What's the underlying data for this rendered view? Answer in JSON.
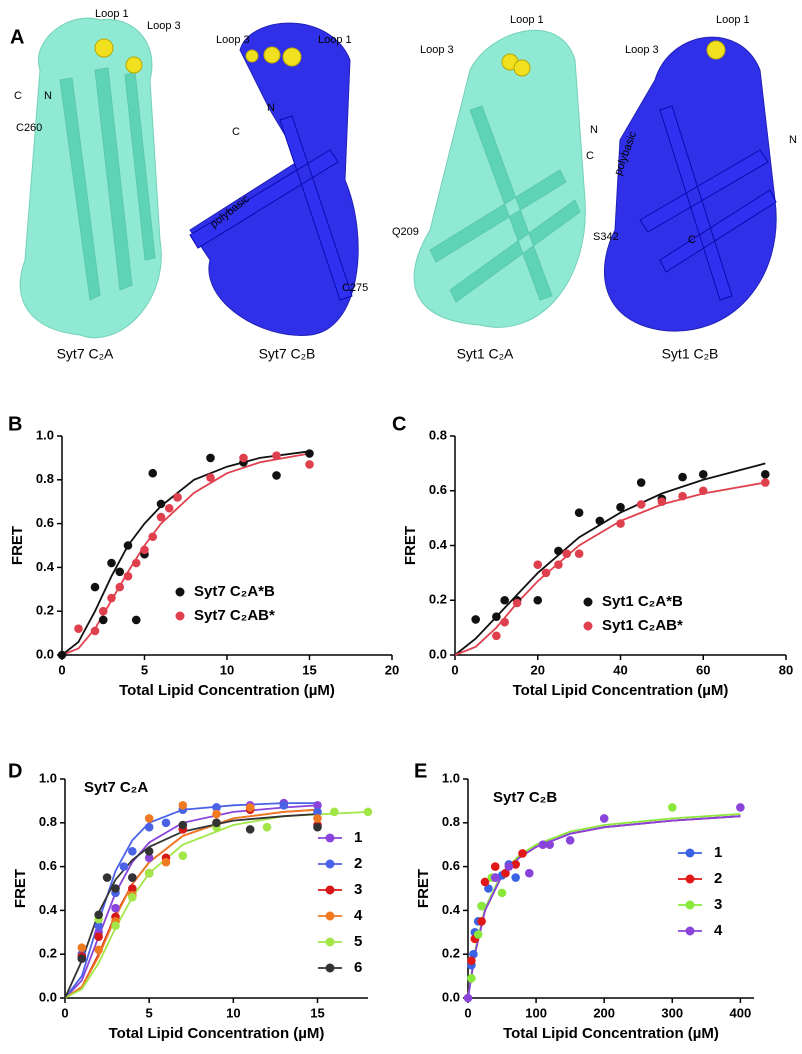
{
  "panel_a": {
    "label": "A",
    "structures": [
      {
        "caption": "Syt7 C₂A",
        "labels": [
          "Loop 1",
          "Loop 3",
          "C",
          "N",
          "C260"
        ]
      },
      {
        "caption": "Syt7 C₂B",
        "labels": [
          "Loop 3",
          "Loop 1",
          "N",
          "C",
          "polybasic",
          "C275"
        ]
      },
      {
        "caption": "Syt1 C₂A",
        "labels": [
          "Loop 1",
          "Loop 3",
          "N",
          "C",
          "Q209"
        ]
      },
      {
        "caption": "Syt1 C₂B",
        "labels": [
          "Loop 1",
          "Loop 3",
          "polybasic",
          "N",
          "S342",
          "C"
        ]
      }
    ]
  },
  "chart_data": [
    {
      "type": "scatter",
      "panel": "B",
      "xlabel": "Total Lipid Concentration (µM)",
      "ylabel": "FRET",
      "xlim": [
        0,
        20
      ],
      "xticks": [
        0,
        5,
        10,
        15,
        20
      ],
      "ylim": [
        0,
        1.0
      ],
      "yticks": [
        {
          "value": 0,
          "label": "0.0"
        },
        0.2,
        0.4,
        0.6,
        0.8,
        {
          "value": 1.0,
          "label": "1.0"
        }
      ],
      "legend": "lower right",
      "series": [
        {
          "name": "Syt7 C₂A*B",
          "color": "#111111",
          "x": [
            0,
            2,
            2.5,
            3,
            3.5,
            4,
            4.5,
            5,
            5.5,
            6,
            7,
            9,
            11,
            13,
            15
          ],
          "values": [
            0,
            0.31,
            0.16,
            0.42,
            0.38,
            0.5,
            0.16,
            0.46,
            0.83,
            0.69,
            0.72,
            0.9,
            0.88,
            0.82,
            0.92
          ],
          "fit": {
            "x": [
              0,
              1,
              2,
              3,
              4,
              5,
              6,
              8,
              10,
              12,
              15
            ],
            "values": [
              0,
              0.06,
              0.2,
              0.36,
              0.5,
              0.6,
              0.68,
              0.8,
              0.86,
              0.9,
              0.93
            ]
          }
        },
        {
          "name": "Syt7 C₂AB*",
          "color": "#e0404e",
          "x": [
            1,
            2,
            2.5,
            3,
            3.5,
            4,
            4.5,
            5,
            5.5,
            6,
            6.5,
            7,
            9,
            11,
            13,
            15
          ],
          "values": [
            0.12,
            0.11,
            0.2,
            0.26,
            0.31,
            0.36,
            0.42,
            0.48,
            0.54,
            0.63,
            0.67,
            0.72,
            0.81,
            0.9,
            0.91,
            0.87
          ],
          "fit": {
            "x": [
              0,
              1,
              2,
              3,
              4,
              5,
              6,
              8,
              10,
              12,
              15
            ],
            "values": [
              0,
              0.03,
              0.12,
              0.25,
              0.38,
              0.5,
              0.6,
              0.74,
              0.83,
              0.88,
              0.92
            ]
          }
        }
      ]
    },
    {
      "type": "scatter",
      "panel": "C",
      "xlabel": "Total Lipid Concentration (µM)",
      "ylabel": "FRET",
      "xlim": [
        0,
        80
      ],
      "xticks": [
        0,
        20,
        40,
        60,
        80
      ],
      "ylim": [
        0,
        0.8
      ],
      "yticks": [
        {
          "value": 0,
          "label": "0.0"
        },
        0.2,
        0.4,
        0.6,
        0.8
      ],
      "legend": "lower right",
      "series": [
        {
          "name": "Syt1 C₂A*B",
          "color": "#111111",
          "x": [
            5,
            10,
            12,
            15,
            20,
            25,
            30,
            35,
            40,
            45,
            50,
            55,
            60,
            75
          ],
          "values": [
            0.13,
            0.14,
            0.2,
            0.2,
            0.2,
            0.38,
            0.52,
            0.49,
            0.54,
            0.63,
            0.57,
            0.65,
            0.66,
            0.66
          ],
          "fit": {
            "x": [
              0,
              5,
              10,
              15,
              20,
              30,
              40,
              50,
              60,
              75
            ],
            "values": [
              0,
              0.06,
              0.14,
              0.22,
              0.3,
              0.43,
              0.52,
              0.59,
              0.64,
              0.7
            ]
          }
        },
        {
          "name": "Syt1 C₂AB*",
          "color": "#e0404e",
          "x": [
            10,
            12,
            15,
            20,
            22,
            25,
            27,
            30,
            40,
            45,
            50,
            55,
            60,
            75
          ],
          "values": [
            0.07,
            0.12,
            0.19,
            0.33,
            0.3,
            0.33,
            0.37,
            0.37,
            0.48,
            0.55,
            0.56,
            0.58,
            0.6,
            0.63
          ],
          "fit": {
            "x": [
              0,
              5,
              10,
              15,
              20,
              30,
              40,
              50,
              60,
              75
            ],
            "values": [
              0,
              0.03,
              0.1,
              0.19,
              0.27,
              0.4,
              0.49,
              0.55,
              0.59,
              0.63
            ]
          }
        }
      ]
    },
    {
      "type": "scatter",
      "panel": "D",
      "title": "Syt7 C₂A",
      "xlabel": "Total Lipid Concentration (µM)",
      "ylabel": "FRET",
      "xlim": [
        0,
        18
      ],
      "xticks": [
        0,
        5,
        10,
        15
      ],
      "ylim": [
        0,
        1.0
      ],
      "yticks": [
        {
          "value": 0,
          "label": "0.0"
        },
        0.2,
        0.4,
        0.6,
        0.8,
        {
          "value": 1.0,
          "label": "1.0"
        }
      ],
      "legend": "right",
      "series": [
        {
          "name": "1",
          "color": "#8a44dc",
          "x": [
            1,
            2,
            3,
            4,
            5,
            7,
            9,
            11,
            13,
            15
          ],
          "values": [
            0.18,
            0.3,
            0.41,
            0.55,
            0.64,
            0.77,
            0.87,
            0.88,
            0.89,
            0.88
          ],
          "fit": {
            "x": [
              0,
              1,
              2,
              3,
              4,
              5,
              7,
              10,
              13,
              15
            ],
            "values": [
              0,
              0.08,
              0.28,
              0.48,
              0.62,
              0.71,
              0.8,
              0.85,
              0.87,
              0.88
            ]
          }
        },
        {
          "name": "2",
          "color": "#4a62e6",
          "x": [
            1,
            2,
            3,
            3.5,
            4,
            5,
            6,
            7,
            9,
            11,
            13,
            15
          ],
          "values": [
            0.2,
            0.33,
            0.48,
            0.6,
            0.67,
            0.78,
            0.8,
            0.86,
            0.87,
            0.87,
            0.88,
            0.85
          ],
          "fit": {
            "x": [
              0,
              1,
              2,
              3,
              4,
              5,
              7,
              10,
              13,
              15
            ],
            "values": [
              0,
              0.1,
              0.35,
              0.58,
              0.72,
              0.8,
              0.86,
              0.88,
              0.89,
              0.89
            ]
          }
        },
        {
          "name": "3",
          "color": "#d81818",
          "x": [
            1,
            2,
            3,
            4,
            5,
            6,
            7,
            9,
            11,
            15
          ],
          "values": [
            0.19,
            0.28,
            0.37,
            0.5,
            0.57,
            0.64,
            0.77,
            0.8,
            0.86,
            0.79
          ],
          "fit": {
            "x": [
              0,
              1,
              2,
              3,
              4,
              5,
              7,
              10,
              13,
              15
            ],
            "values": [
              0,
              0.05,
              0.2,
              0.38,
              0.52,
              0.62,
              0.74,
              0.82,
              0.85,
              0.86
            ]
          }
        },
        {
          "name": "4",
          "color": "#f07a22",
          "x": [
            1,
            2,
            3,
            4,
            5,
            6,
            7,
            9,
            11,
            15
          ],
          "values": [
            0.23,
            0.22,
            0.35,
            0.47,
            0.82,
            0.62,
            0.88,
            0.84,
            0.87,
            0.82
          ],
          "fit": {
            "x": [
              0,
              1,
              2,
              3,
              4,
              5,
              7,
              10,
              13,
              15
            ],
            "values": [
              0,
              0.05,
              0.19,
              0.37,
              0.52,
              0.62,
              0.74,
              0.82,
              0.85,
              0.86
            ]
          }
        },
        {
          "name": "5",
          "color": "#a2e648",
          "x": [
            2,
            3,
            4,
            5,
            7,
            9,
            12,
            16,
            18
          ],
          "values": [
            0.36,
            0.33,
            0.46,
            0.57,
            0.65,
            0.78,
            0.78,
            0.85,
            0.85
          ],
          "fit": {
            "x": [
              0,
              1,
              2,
              3,
              4,
              5,
              7,
              10,
              13,
              18
            ],
            "values": [
              0,
              0.04,
              0.16,
              0.32,
              0.46,
              0.57,
              0.7,
              0.79,
              0.83,
              0.85
            ]
          }
        },
        {
          "name": "6",
          "color": "#333333",
          "x": [
            1,
            2,
            2.5,
            3,
            4,
            5,
            7,
            9,
            11,
            15
          ],
          "values": [
            0.18,
            0.38,
            0.55,
            0.5,
            0.55,
            0.67,
            0.79,
            0.8,
            0.77,
            0.78
          ],
          "fit": {
            "x": [
              0,
              1,
              2,
              3,
              4,
              5,
              7,
              10,
              13,
              15
            ],
            "values": [
              0,
              0.17,
              0.39,
              0.54,
              0.63,
              0.69,
              0.76,
              0.81,
              0.83,
              0.84
            ]
          }
        }
      ]
    },
    {
      "type": "scatter",
      "panel": "E",
      "title": "Syt7 C₂B",
      "xlabel": "Total Lipid Concentration (µM)",
      "ylabel": "FRET",
      "xlim": [
        0,
        420
      ],
      "xticks": [
        0,
        100,
        200,
        300,
        400
      ],
      "ylim": [
        0,
        1.0
      ],
      "yticks": [
        {
          "value": 0,
          "label": "0.0"
        },
        0.2,
        0.4,
        0.6,
        0.8,
        {
          "value": 1.0,
          "label": "1.0"
        }
      ],
      "legend": "right",
      "series": [
        {
          "name": "1",
          "color": "#3a62e6",
          "x": [
            5,
            8,
            10,
            15,
            20,
            30,
            40,
            50,
            60,
            70
          ],
          "values": [
            0.15,
            0.2,
            0.3,
            0.35,
            0.42,
            0.5,
            0.55,
            0.56,
            0.61,
            0.55
          ],
          "fit": {
            "x": [
              0,
              10,
              25,
              50,
              75,
              100,
              150,
              200,
              300,
              400
            ],
            "values": [
              0,
              0.2,
              0.4,
              0.56,
              0.64,
              0.69,
              0.75,
              0.78,
              0.81,
              0.83
            ]
          }
        },
        {
          "name": "2",
          "color": "#e01818",
          "x": [
            5,
            10,
            20,
            25,
            40,
            55,
            70,
            80
          ],
          "values": [
            0.17,
            0.27,
            0.35,
            0.53,
            0.6,
            0.57,
            0.61,
            0.66
          ],
          "fit": {
            "x": [
              0,
              10,
              25,
              50,
              75,
              100,
              150,
              200,
              300,
              400
            ],
            "values": [
              0,
              0.2,
              0.4,
              0.56,
              0.64,
              0.69,
              0.75,
              0.78,
              0.81,
              0.83
            ]
          }
        },
        {
          "name": "3",
          "color": "#8ae83a",
          "x": [
            5,
            15,
            20,
            35,
            50,
            200,
            300
          ],
          "values": [
            0.09,
            0.29,
            0.42,
            0.55,
            0.48,
            0.82,
            0.87
          ],
          "fit": {
            "x": [
              0,
              10,
              25,
              50,
              75,
              100,
              150,
              200,
              300,
              400
            ],
            "values": [
              0,
              0.21,
              0.41,
              0.57,
              0.65,
              0.7,
              0.76,
              0.79,
              0.82,
              0.84
            ]
          }
        },
        {
          "name": "4",
          "color": "#8a44dc",
          "x": [
            0,
            40,
            60,
            90,
            110,
            120,
            150,
            200,
            400
          ],
          "values": [
            0,
            0.55,
            0.6,
            0.57,
            0.7,
            0.7,
            0.72,
            0.82,
            0.87
          ],
          "fit": {
            "x": [
              0,
              10,
              25,
              50,
              75,
              100,
              150,
              200,
              300,
              400
            ],
            "values": [
              0,
              0.2,
              0.4,
              0.56,
              0.64,
              0.69,
              0.75,
              0.78,
              0.81,
              0.83
            ]
          }
        }
      ]
    }
  ]
}
